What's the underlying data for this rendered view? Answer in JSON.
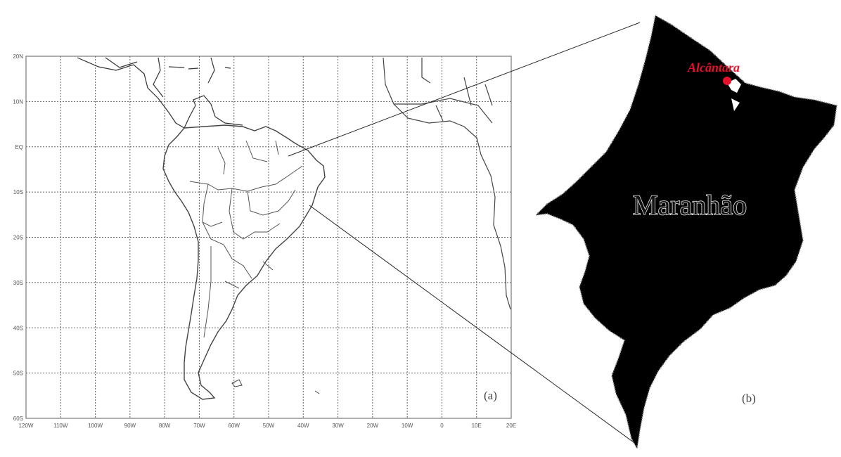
{
  "panel_a": {
    "label": "(a)",
    "lat_labels": [
      "20N",
      "10N",
      "EQ",
      "10S",
      "20S",
      "30S",
      "40S",
      "50S",
      "60S"
    ],
    "lon_labels": [
      "120W",
      "110W",
      "100W",
      "90W",
      "80W",
      "70W",
      "60W",
      "50W",
      "40W",
      "30W",
      "20W",
      "10W",
      "0",
      "10E",
      "20E"
    ],
    "grid": true,
    "line_color": "#666666"
  },
  "panel_b": {
    "label": "(b)",
    "state_name": "Maranhão",
    "city_name": "Alcântara",
    "state_fill": "#000000",
    "city_color": "#e8102a"
  }
}
